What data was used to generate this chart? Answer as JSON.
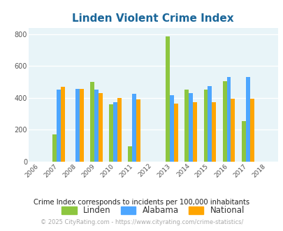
{
  "title": "Linden Violent Crime Index",
  "years": [
    2006,
    2007,
    2008,
    2009,
    2010,
    2011,
    2012,
    2013,
    2014,
    2015,
    2016,
    2017,
    2018
  ],
  "bar_years": [
    2007,
    2008,
    2009,
    2010,
    2011,
    2013,
    2014,
    2015,
    2016,
    2017
  ],
  "linden": [
    170,
    0,
    500,
    360,
    95,
    785,
    450,
    450,
    505,
    255
  ],
  "alabama": [
    450,
    455,
    450,
    375,
    425,
    415,
    430,
    475,
    530,
    530
  ],
  "national": [
    470,
    455,
    430,
    400,
    390,
    365,
    375,
    375,
    395,
    395
  ],
  "linden_color": "#8dc63f",
  "alabama_color": "#4da6ff",
  "national_color": "#ffa500",
  "bg_color": "#e8f4f8",
  "ylim": [
    0,
    840
  ],
  "yticks": [
    0,
    200,
    400,
    600,
    800
  ],
  "title_color": "#1a6699",
  "title_fontsize": 11,
  "subtitle": "Crime Index corresponds to incidents per 100,000 inhabitants",
  "footer": "© 2025 CityRating.com - https://www.cityrating.com/crime-statistics/",
  "bar_width": 0.22,
  "legend_labels": [
    "Linden",
    "Alabama",
    "National"
  ],
  "grid_color": "#ffffff"
}
